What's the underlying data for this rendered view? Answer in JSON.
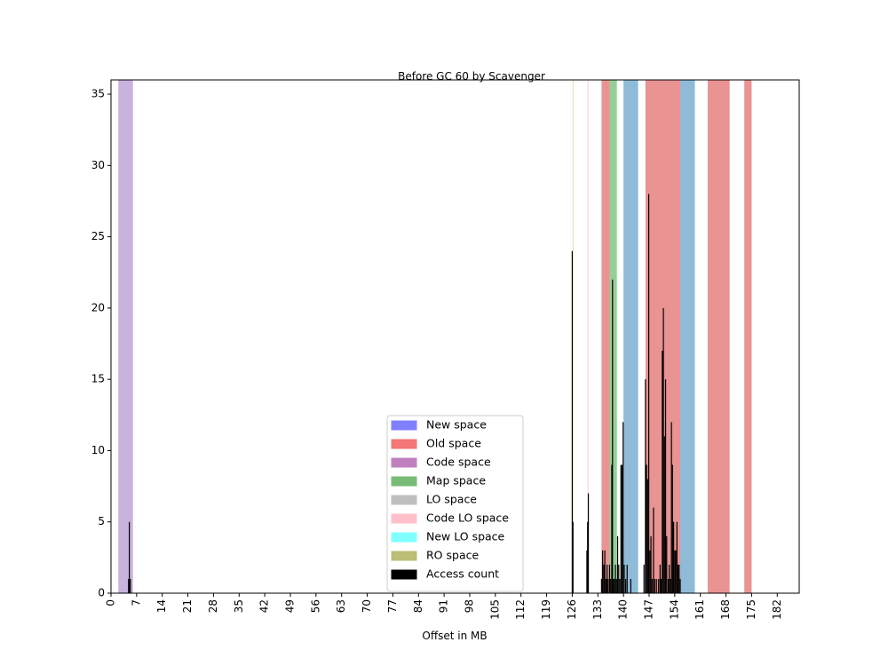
{
  "chart_data": {
    "type": "bar",
    "title": "Before GC 60 by Scavenger",
    "xlabel": "Offset in MB",
    "ylabel": "",
    "xlim": [
      0,
      188
    ],
    "ylim": [
      0,
      36
    ],
    "xticks": [
      0,
      7,
      14,
      21,
      28,
      35,
      42,
      49,
      56,
      63,
      70,
      77,
      84,
      91,
      98,
      105,
      112,
      119,
      126,
      133,
      140,
      147,
      154,
      161,
      168,
      175,
      182
    ],
    "yticks": [
      0,
      5,
      10,
      15,
      20,
      25,
      30,
      35
    ],
    "legend_position": "lower-center",
    "spaces": [
      {
        "name": "New space",
        "color": "#1f77b4",
        "regions": [
          [
            140,
            144
          ],
          [
            155.5,
            159.5
          ]
        ]
      },
      {
        "name": "Old space",
        "color": "#d62728",
        "regions": [
          [
            134,
            136.2
          ],
          [
            146,
            155.5
          ],
          [
            163,
            169
          ],
          [
            173,
            175
          ]
        ]
      },
      {
        "name": "Code space",
        "color": "#9467bd",
        "regions": [
          [
            2,
            6
          ]
        ]
      },
      {
        "name": "Map space",
        "color": "#2ca02c",
        "regions": [
          [
            136.2,
            138.2
          ]
        ]
      },
      {
        "name": "LO space",
        "color": "#7f7f7f",
        "regions": []
      },
      {
        "name": "Code LO space",
        "color": "#e377c2",
        "regions": [
          [
            130.2,
            130.4
          ]
        ]
      },
      {
        "name": "New LO space",
        "color": "#17becf",
        "regions": []
      },
      {
        "name": "RO space",
        "color": "#bcbd22",
        "regions": [
          [
            126.1,
            126.3
          ]
        ]
      }
    ],
    "legend_colors": {
      "New space": "#8080ff",
      "Old space": "#f47676",
      "Code space": "#bf80bf",
      "Map space": "#77bb77",
      "LO space": "#bfbfbf",
      "Code LO space": "#ffc0cb",
      "New LO space": "#80ffff",
      "RO space": "#bcbd76",
      "Access count": "#000000"
    },
    "access_count": [
      {
        "x": 4.8,
        "y": 1
      },
      {
        "x": 5.0,
        "y": 5
      },
      {
        "x": 5.3,
        "y": 1
      },
      {
        "x": 126.0,
        "y": 24
      },
      {
        "x": 126.2,
        "y": 5
      },
      {
        "x": 130.0,
        "y": 3
      },
      {
        "x": 130.2,
        "y": 5
      },
      {
        "x": 130.4,
        "y": 7
      },
      {
        "x": 134.0,
        "y": 1
      },
      {
        "x": 134.3,
        "y": 3
      },
      {
        "x": 134.6,
        "y": 2
      },
      {
        "x": 134.9,
        "y": 3
      },
      {
        "x": 135.2,
        "y": 1
      },
      {
        "x": 135.5,
        "y": 2
      },
      {
        "x": 135.8,
        "y": 1
      },
      {
        "x": 136.2,
        "y": 2
      },
      {
        "x": 136.5,
        "y": 1
      },
      {
        "x": 136.8,
        "y": 9
      },
      {
        "x": 137.0,
        "y": 22
      },
      {
        "x": 137.2,
        "y": 1
      },
      {
        "x": 137.5,
        "y": 1
      },
      {
        "x": 137.8,
        "y": 2
      },
      {
        "x": 138.1,
        "y": 1
      },
      {
        "x": 138.4,
        "y": 4
      },
      {
        "x": 138.7,
        "y": 2
      },
      {
        "x": 139.0,
        "y": 1
      },
      {
        "x": 139.3,
        "y": 9
      },
      {
        "x": 139.6,
        "y": 9
      },
      {
        "x": 139.9,
        "y": 12
      },
      {
        "x": 140.2,
        "y": 2
      },
      {
        "x": 140.6,
        "y": 1
      },
      {
        "x": 141.0,
        "y": 2
      },
      {
        "x": 142.0,
        "y": 1
      },
      {
        "x": 145.6,
        "y": 2
      },
      {
        "x": 146.0,
        "y": 15
      },
      {
        "x": 146.3,
        "y": 9
      },
      {
        "x": 146.6,
        "y": 8
      },
      {
        "x": 146.9,
        "y": 28
      },
      {
        "x": 147.2,
        "y": 3
      },
      {
        "x": 147.5,
        "y": 4
      },
      {
        "x": 147.8,
        "y": 1
      },
      {
        "x": 148.2,
        "y": 6
      },
      {
        "x": 148.5,
        "y": 1
      },
      {
        "x": 149.0,
        "y": 1
      },
      {
        "x": 149.6,
        "y": 1
      },
      {
        "x": 150.0,
        "y": 2
      },
      {
        "x": 150.3,
        "y": 1
      },
      {
        "x": 150.6,
        "y": 17
      },
      {
        "x": 150.9,
        "y": 20
      },
      {
        "x": 151.2,
        "y": 11
      },
      {
        "x": 151.5,
        "y": 15
      },
      {
        "x": 151.8,
        "y": 4
      },
      {
        "x": 152.2,
        "y": 1
      },
      {
        "x": 152.5,
        "y": 2
      },
      {
        "x": 152.8,
        "y": 1
      },
      {
        "x": 153.1,
        "y": 12
      },
      {
        "x": 153.4,
        "y": 9
      },
      {
        "x": 153.7,
        "y": 5
      },
      {
        "x": 154.0,
        "y": 3
      },
      {
        "x": 154.3,
        "y": 3
      },
      {
        "x": 154.6,
        "y": 5
      },
      {
        "x": 154.9,
        "y": 2
      },
      {
        "x": 155.2,
        "y": 2
      },
      {
        "x": 155.5,
        "y": 1
      }
    ]
  }
}
